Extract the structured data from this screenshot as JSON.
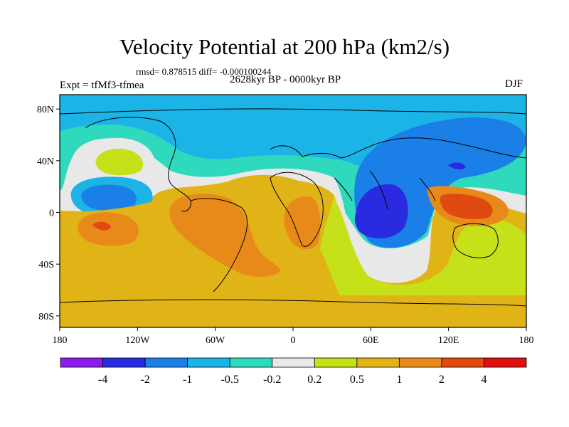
{
  "title": "Velocity Potential at 200 hPa (km2/s)",
  "stats": "rmsd= 0.878515  diff= -0.000100244",
  "left_label": "Expt = tfMf3-tfmea",
  "center_label": "2628kyr BP - 0000kyr BP",
  "right_label": "DJF",
  "map": {
    "projection": "cylindrical equidistant",
    "lon_range": [
      -180,
      180
    ],
    "lat_range": [
      -90,
      90
    ],
    "x_ticks": [
      "180",
      "120W",
      "60W",
      "0",
      "60E",
      "120E",
      "180"
    ],
    "y_ticks": [
      "80N",
      "40N",
      "0",
      "40S",
      "80S"
    ]
  },
  "colorbar": {
    "labels": [
      "-4",
      "-2",
      "-1",
      "-0.5",
      "-0.2",
      "0.2",
      "0.5",
      "1",
      "2",
      "4"
    ],
    "colors": [
      "#8a1de6",
      "#2a2ae0",
      "#1a7fe6",
      "#1cb4e6",
      "#2fd9bd",
      "#e8e8e8",
      "#c6e01a",
      "#e0b416",
      "#e88a1a",
      "#e04a10",
      "#e01010"
    ]
  },
  "colors": {
    "neg_4": "#2a2ae0",
    "neg_2": "#1a7fe6",
    "neg_1": "#1cb4e6",
    "neg_05": "#2fd9bd",
    "near_zero": "#e8e8e8",
    "pos_02": "#c6e01a",
    "pos_05": "#e0b416",
    "pos_1": "#e88a1a",
    "pos_2": "#e04a10"
  }
}
